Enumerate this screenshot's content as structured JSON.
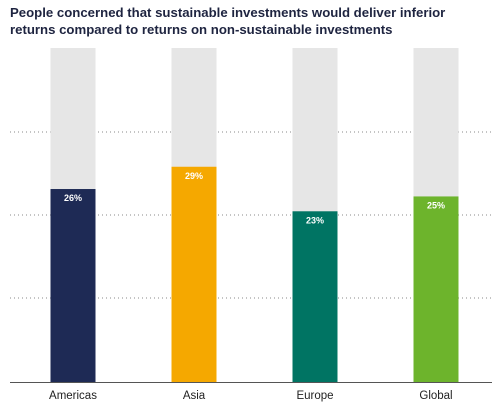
{
  "chart_data": {
    "type": "bar",
    "title": "People concerned that sustainable investments would deliver inferior returns compared to returns on non-sustainable investments",
    "categories": [
      "Americas",
      "Asia",
      "Europe",
      "Global"
    ],
    "values": [
      26,
      29,
      23,
      25
    ],
    "value_labels": [
      "26%",
      "29%",
      "23%",
      "25%"
    ],
    "colors": [
      "#1e2a55",
      "#f5a800",
      "#007463",
      "#6db42c"
    ],
    "track_color": "#e6e6e6",
    "ylim": [
      0,
      45
    ],
    "xlabel": "",
    "ylabel": "",
    "grid": true,
    "legend": "none"
  }
}
